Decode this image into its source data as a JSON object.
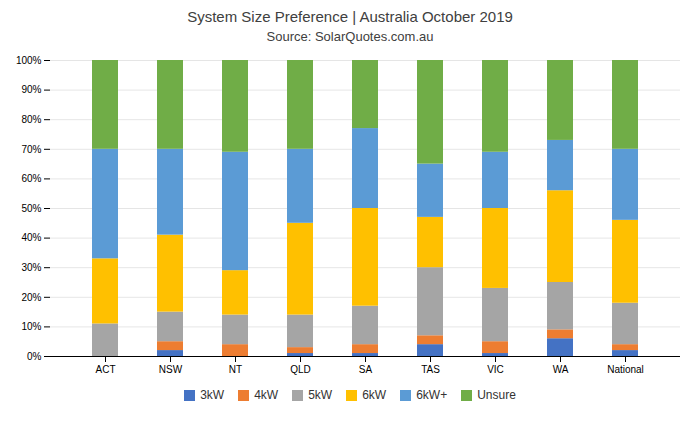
{
  "chart_data": {
    "type": "bar",
    "stacked": true,
    "title": "System Size Preference  |  Australia October 2019",
    "subtitle": "Source: SolarQuotes.com.au",
    "categories": [
      "ACT",
      "NSW",
      "NT",
      "QLD",
      "SA",
      "TAS",
      "VIC",
      "WA",
      "National"
    ],
    "series": [
      {
        "name": "3kW",
        "color": "#4472C4",
        "values": [
          0,
          2,
          0,
          1,
          1,
          4,
          1,
          6,
          2
        ]
      },
      {
        "name": "4kW",
        "color": "#ED7D31",
        "values": [
          0,
          3,
          4,
          2,
          3,
          3,
          4,
          3,
          2
        ]
      },
      {
        "name": "5kW",
        "color": "#A5A5A5",
        "values": [
          11,
          10,
          10,
          11,
          13,
          23,
          18,
          16,
          14
        ]
      },
      {
        "name": "6kW",
        "color": "#FFC000",
        "values": [
          22,
          26,
          15,
          31,
          33,
          17,
          27,
          31,
          28
        ]
      },
      {
        "name": "6kW+",
        "color": "#5B9BD5",
        "values": [
          37,
          29,
          40,
          25,
          27,
          18,
          19,
          17,
          24
        ]
      },
      {
        "name": "Unsure",
        "color": "#70AD47",
        "values": [
          30,
          30,
          31,
          30,
          23,
          35,
          31,
          27,
          30
        ]
      }
    ],
    "ylim": [
      0,
      100
    ],
    "yticks": [
      {
        "value": 0,
        "label": "0%"
      },
      {
        "value": 10,
        "label": "10%"
      },
      {
        "value": 20,
        "label": "20%"
      },
      {
        "value": 30,
        "label": "30%"
      },
      {
        "value": 40,
        "label": "40%"
      },
      {
        "value": 50,
        "label": "50%"
      },
      {
        "value": 60,
        "label": "60%"
      },
      {
        "value": 70,
        "label": "70%"
      },
      {
        "value": 80,
        "label": "80%"
      },
      {
        "value": 90,
        "label": "90%"
      },
      {
        "value": 100,
        "label": "100%"
      }
    ],
    "grid": true,
    "legend": "bottom"
  }
}
